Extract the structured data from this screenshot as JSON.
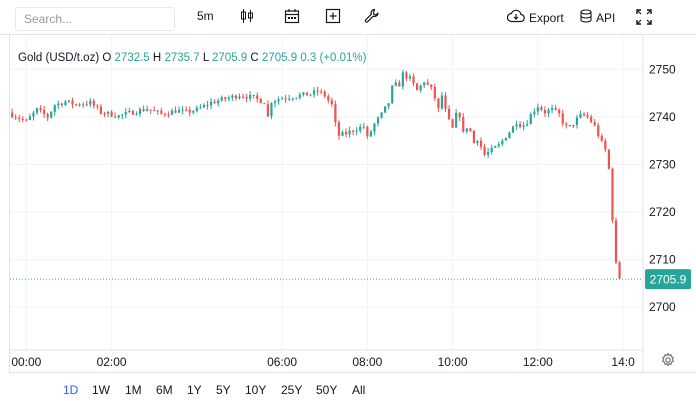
{
  "toolbar": {
    "search_placeholder": "Search...",
    "interval": "5m",
    "candle_icon": "candlestick-icon",
    "calendar_icon": "calendar-icon",
    "add_icon": "plus-square-icon",
    "indicator_icon": "wrench-icon",
    "export_label": "Export",
    "api_label": "API",
    "fullscreen_icon": "fullscreen-icon"
  },
  "legend": {
    "symbol": "Gold (USD/t.oz)",
    "o_label": "O",
    "o": "2732.5",
    "h_label": "H",
    "h": "2735.7",
    "l_label": "L",
    "l": "2705.9",
    "c_label": "C",
    "c": "2705.9",
    "change": "0.3 (+0.01%)"
  },
  "price_tag": "2705.9",
  "ranges": [
    "1D",
    "1W",
    "1M",
    "6M",
    "1Y",
    "5Y",
    "10Y",
    "25Y",
    "50Y",
    "All"
  ],
  "active_range": "1D",
  "colors": {
    "up": "#26a69a",
    "down": "#ef5350",
    "grid": "#f0f3fa",
    "tag": "#26a69a"
  },
  "chart_data": {
    "type": "candlestick",
    "yticks": [
      2750,
      2740,
      2730,
      2720,
      2710,
      2700
    ],
    "ylim": [
      2691,
      2757
    ],
    "xticks": [
      {
        "label": "00:00",
        "t": 0
      },
      {
        "label": "02:00",
        "t": 120
      },
      {
        "label": "06:00",
        "t": 360
      },
      {
        "label": "08:00",
        "t": 480
      },
      {
        "label": "10:00",
        "t": 600
      },
      {
        "label": "12:00",
        "t": 720
      },
      {
        "label": "14:0",
        "t": 840
      }
    ],
    "xlim": [
      -23,
      868
    ],
    "last_price": 2705.9,
    "close_path": [
      [
        -20,
        2740.5
      ],
      [
        0,
        2739.0
      ],
      [
        15,
        2741.5
      ],
      [
        30,
        2740.0
      ],
      [
        40,
        2742.5
      ],
      [
        55,
        2743.2
      ],
      [
        70,
        2742.6
      ],
      [
        90,
        2743.0
      ],
      [
        105,
        2741.0
      ],
      [
        130,
        2740.2
      ],
      [
        150,
        2741.0
      ],
      [
        170,
        2741.7
      ],
      [
        190,
        2740.6
      ],
      [
        210,
        2741.3
      ],
      [
        225,
        2741.0
      ],
      [
        240,
        2741.5
      ],
      [
        260,
        2743.0
      ],
      [
        280,
        2743.8
      ],
      [
        300,
        2744.6
      ],
      [
        320,
        2744.0
      ],
      [
        335,
        2743.1
      ],
      [
        340,
        2740.0
      ],
      [
        345,
        2743.3
      ],
      [
        360,
        2744.0
      ],
      [
        380,
        2744.4
      ],
      [
        400,
        2744.8
      ],
      [
        410,
        2745.4
      ],
      [
        420,
        2744.5
      ],
      [
        430,
        2742.5
      ],
      [
        438,
        2736.0
      ],
      [
        450,
        2736.5
      ],
      [
        465,
        2737.5
      ],
      [
        475,
        2738.0
      ],
      [
        480,
        2735.5
      ],
      [
        490,
        2738.5
      ],
      [
        500,
        2740.5
      ],
      [
        510,
        2743.0
      ],
      [
        518,
        2748.0
      ],
      [
        522,
        2745.5
      ],
      [
        530,
        2749.0
      ],
      [
        540,
        2748.0
      ],
      [
        550,
        2745.5
      ],
      [
        560,
        2747.5
      ],
      [
        572,
        2745.5
      ],
      [
        580,
        2741.5
      ],
      [
        585,
        2744.5
      ],
      [
        592,
        2740.0
      ],
      [
        600,
        2737.5
      ],
      [
        608,
        2742.0
      ],
      [
        615,
        2736.5
      ],
      [
        622,
        2738.5
      ],
      [
        630,
        2734.5
      ],
      [
        635,
        2735.5
      ],
      [
        645,
        2732.0
      ],
      [
        655,
        2733.0
      ],
      [
        665,
        2734.0
      ],
      [
        675,
        2736.0
      ],
      [
        682,
        2737.2
      ],
      [
        690,
        2739.0
      ],
      [
        698,
        2738.0
      ],
      [
        705,
        2739.0
      ],
      [
        712,
        2741.0
      ],
      [
        720,
        2742.3
      ],
      [
        730,
        2741.0
      ],
      [
        740,
        2741.5
      ],
      [
        750,
        2740.5
      ],
      [
        758,
        2738.0
      ],
      [
        765,
        2737.8
      ],
      [
        775,
        2739.5
      ],
      [
        782,
        2740.5
      ],
      [
        790,
        2740.0
      ],
      [
        800,
        2738.0
      ],
      [
        810,
        2734.5
      ],
      [
        815,
        2733.0
      ],
      [
        820,
        2729.0
      ],
      [
        823,
        2724.0
      ],
      [
        826,
        2716.0
      ],
      [
        828,
        2713.0
      ],
      [
        830,
        2709.0
      ],
      [
        833,
        2706.5
      ],
      [
        836,
        2706.0
      ],
      [
        838,
        2705.9
      ]
    ]
  }
}
